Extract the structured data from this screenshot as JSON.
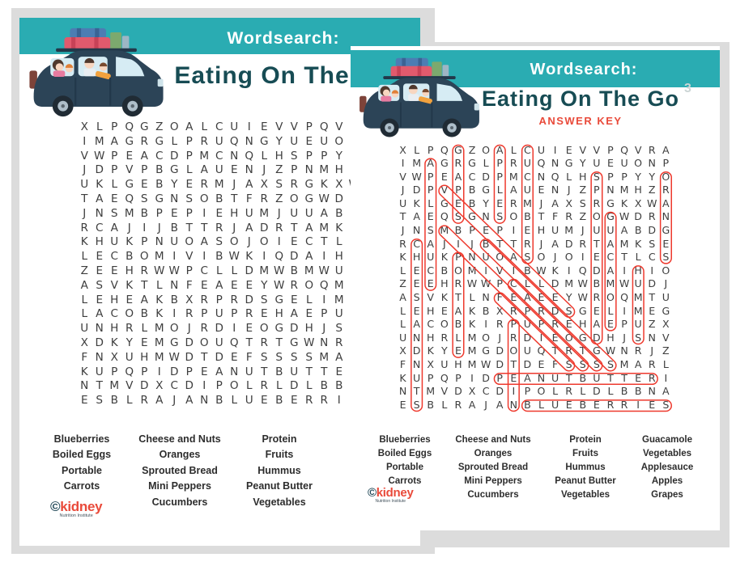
{
  "header": {
    "kicker": "Wordsearch:",
    "title": "Eating On The Go",
    "answer_key_label": "ANSWER KEY",
    "page_number_hint": "3"
  },
  "logo": {
    "copyright": "©",
    "brand": "kidney",
    "tagline": "Nutrition Institute"
  },
  "grid": {
    "size": 20,
    "rows": [
      "XLPQGZOALCUIEVVPQVRA",
      "IMAGRGLPRUQNGYUEUONP",
      "VWPEACDPMCNQLHSPPYYO",
      "JDPVPBGLAUENJZPNMHZR",
      "UKLGEBYERMJAXSRGKXWA",
      "TAEQSGNSOBTFRZOGWDRN",
      "JNSMBPEPIEHUMJUUABDG",
      "RCAJIJBTTRJADRTAMKSE",
      "KHUKPNUOASOJOIECTLCS",
      "LECBOMIVIBWKIQDAIHIO",
      "ZEEHRWWPCLLDMWBMWUDJ",
      "ASVKTLNFEAEEYWROQMTU",
      "LEHEAKBXRPRDSGELIMEG",
      "LACOBKIRPUPREHAEPUZX",
      "UNHRLMOJRDIEOGDHJSNV",
      "XDKYEMGDOUQTRTGWNRJZ",
      "FNXUHMWDTDEFSSSSMARL",
      "KUPQPIDPEANUTBUTTERI",
      "NTMVDXCDIPOLRLDLBBNA",
      "ESBLRAJANBLUEBERRIES"
    ]
  },
  "words": {
    "columns": [
      [
        "Blueberries",
        "Boiled Eggs",
        "Portable",
        "Carrots"
      ],
      [
        "Cheese and Nuts",
        "Oranges",
        "Sprouted Bread",
        "Mini Peppers",
        "Cucumbers"
      ],
      [
        "Protein",
        "Fruits",
        "Hummus",
        "Peanut Butter",
        "Vegetables"
      ],
      [
        "Guacamole",
        "Vegetables",
        "Applesauce",
        "Apples",
        "Grapes"
      ]
    ]
  },
  "answers": [
    {
      "word": "GRAPES",
      "r1": 1,
      "c1": 5,
      "r2": 6,
      "c2": 5
    },
    {
      "word": "APPLES",
      "r1": 1,
      "c1": 8,
      "r2": 6,
      "c2": 8
    },
    {
      "word": "CUCUMBERS",
      "r1": 1,
      "c1": 10,
      "r2": 9,
      "c2": 10
    },
    {
      "word": "APPLESAUCE",
      "r1": 2,
      "c1": 3,
      "r2": 11,
      "c2": 3
    },
    {
      "word": "SPROUTEDBREAD",
      "r1": 3,
      "c1": 15,
      "r2": 15,
      "c2": 15
    },
    {
      "word": "ORANGES",
      "r1": 3,
      "c1": 20,
      "r2": 9,
      "c2": 20
    },
    {
      "word": "VEGETABLES",
      "r1": 4,
      "c1": 4,
      "r2": 13,
      "c2": 13
    },
    {
      "word": "GUACAMOLE",
      "r1": 6,
      "c1": 16,
      "r2": 14,
      "c2": 16
    },
    {
      "word": "MINIPEPPERS",
      "r1": 7,
      "c1": 4,
      "r2": 17,
      "c2": 14
    },
    {
      "word": "BOILEDEGGS",
      "r1": 8,
      "c1": 7,
      "r2": 17,
      "c2": 16
    },
    {
      "word": "CHEESEANDNUTS",
      "r1": 8,
      "c1": 2,
      "r2": 20,
      "c2": 2
    },
    {
      "word": "PORTABLE",
      "r1": 9,
      "c1": 5,
      "r2": 16,
      "c2": 5
    },
    {
      "word": "HUMMUS",
      "r1": 10,
      "c1": 18,
      "r2": 15,
      "c2": 18
    },
    {
      "word": "CARROTS",
      "r1": 11,
      "c1": 9,
      "r2": 17,
      "c2": 15
    },
    {
      "word": "FRUITS",
      "r1": 12,
      "c1": 8,
      "r2": 17,
      "c2": 13
    },
    {
      "word": "PROTEIN",
      "r1": 14,
      "c1": 9,
      "r2": 20,
      "c2": 9
    },
    {
      "word": "PEANUTBUTTER",
      "r1": 18,
      "c1": 8,
      "r2": 18,
      "c2": 19
    },
    {
      "word": "BLUEBERRIES",
      "r1": 20,
      "c1": 10,
      "r2": 20,
      "c2": 20
    }
  ],
  "colors": {
    "teal": "#2aacb2",
    "dark_teal": "#174c54",
    "accent_red": "#e94a3a",
    "oval_red": "#ee392d",
    "frame_gray": "#dcdcdc",
    "letter": "#3e3e3e",
    "word": "#2d2d2d",
    "logo_navy": "#1d4555",
    "tagline": "#44525c",
    "page_hint": "#ccd5d5"
  },
  "illustration": {
    "name": "family-road-trip-car",
    "car_body": "#2c4457",
    "car_dark": "#22384a",
    "window": "#d6ecf4",
    "luggage_blue": "#4c7db3",
    "luggage_blue_dark": "#3a6394",
    "luggage_red": "#e15a6d",
    "luggage_red_dark": "#c74257",
    "luggage_green": "#7ca96e",
    "luggage_gray": "#9db6c4",
    "wheel": "#202b34",
    "hub": "#aebec9",
    "hub_center": "#5b6770",
    "skin": "#f8d6c0",
    "hair_dark": "#4f382d",
    "hair_orange": "#e08038",
    "mom_shirt": "#e87ba0",
    "arm_orange": "#f2a23e",
    "taillight": "#7d4339",
    "headlight": "#cfe3ea"
  }
}
